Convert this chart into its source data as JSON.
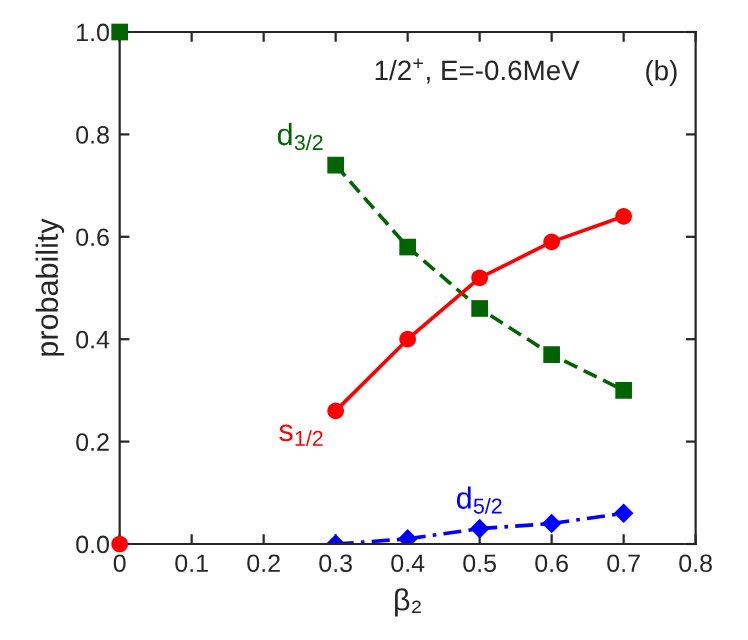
{
  "chart_data": {
    "type": "line",
    "xlabel": "β₂",
    "ylabel": "probability",
    "annotations": [
      "1/2$^{+}$, E=-0.6MeV",
      "(b)"
    ],
    "xlim": [
      0,
      0.8
    ],
    "xticks": [
      0,
      0.1,
      0.2,
      0.3,
      0.4,
      0.5,
      0.6,
      0.7,
      0.8
    ],
    "ylim": [
      0,
      1.0
    ],
    "yticks": [
      {
        "value": 0,
        "label": "0.0"
      },
      0.2,
      0.4,
      0.6,
      0.8,
      {
        "value": 1.0,
        "label": "1.0"
      }
    ],
    "grid": false,
    "legend": false,
    "series": [
      {
        "name": "d$_{3/2}$",
        "color": "#006400",
        "marker": "square",
        "line_style": "dashed",
        "x": [
          0.3,
          0.4,
          0.5,
          0.6,
          0.7
        ],
        "values": [
          0.74,
          0.58,
          0.46,
          0.37,
          0.3
        ]
      },
      {
        "name": "s$_{1/2}$",
        "color": "#ff0000",
        "marker": "circle",
        "line_style": "solid",
        "x": [
          0.3,
          0.4,
          0.5,
          0.6,
          0.7
        ],
        "values": [
          0.26,
          0.4,
          0.52,
          0.59,
          0.64
        ]
      },
      {
        "name": "d$_{5/2}$",
        "color": "#0000ff",
        "marker": "diamond",
        "line_style": "dashdot",
        "x": [
          0.3,
          0.4,
          0.5,
          0.6,
          0.7
        ],
        "values": [
          0.0,
          0.01,
          0.03,
          0.04,
          0.06
        ]
      },
      {
        "type": "scatter",
        "color": "#006400",
        "marker": "square",
        "x": [
          0
        ],
        "values": [
          1.0
        ]
      },
      {
        "type": "scatter",
        "color": "#ff0000",
        "marker": "circle",
        "x": [
          0
        ],
        "values": [
          0.0
        ]
      }
    ]
  }
}
